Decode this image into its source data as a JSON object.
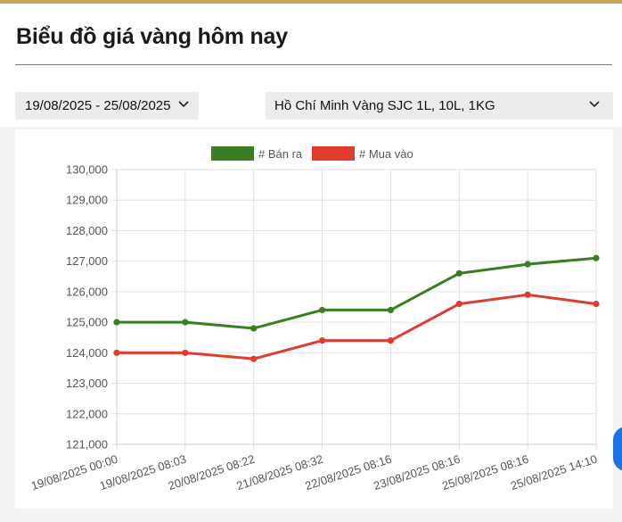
{
  "page": {
    "title": "Biểu đồ giá vàng hôm nay",
    "accent_color": "#c9a35a"
  },
  "filters": {
    "date_range": "19/08/2025 - 25/08/2025",
    "location_product": "Hồ Chí Minh Vàng SJC 1L, 10L, 1KG",
    "dropdown_icon": "chevron-down-icon"
  },
  "chart_data": {
    "type": "line",
    "title": "",
    "xlabel": "",
    "ylabel": "",
    "categories": [
      "19/08/2025 00:00",
      "19/08/2025 08:03",
      "20/08/2025 08:22",
      "21/08/2025 08:32",
      "22/08/2025 08:16",
      "23/08/2025 08:16",
      "25/08/2025 08:16",
      "25/08/2025 14:10"
    ],
    "series": [
      {
        "name": "# Bán ra",
        "color": "#3a7d22",
        "values": [
          125000,
          125000,
          124800,
          125400,
          125400,
          126600,
          126900,
          127100
        ]
      },
      {
        "name": "# Mua vào",
        "color": "#e23b2e",
        "values": [
          124000,
          124000,
          123800,
          124400,
          124400,
          125600,
          125900,
          125600
        ]
      }
    ],
    "ylim": [
      121000,
      130000
    ],
    "yticks": [
      "121,000",
      "122,000",
      "123,000",
      "124,000",
      "125,000",
      "126,000",
      "127,000",
      "128,000",
      "129,000",
      "130,000"
    ],
    "grid": true,
    "legend_position": "top"
  }
}
